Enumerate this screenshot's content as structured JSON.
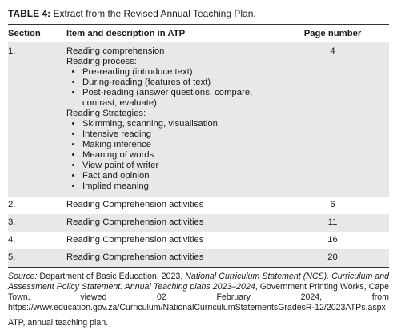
{
  "table": {
    "label": "TABLE 4:",
    "title": "Extract from the Revised Annual Teaching Plan.",
    "headers": [
      "Section",
      "Item and description in ATP",
      "Page number"
    ],
    "rows": [
      {
        "section": "1.",
        "item": {
          "heading": "Reading comprehension",
          "groups": [
            {
              "label": "Reading process:",
              "bullets": [
                "Pre-reading (introduce text)",
                "During-reading (features of text)",
                "Post-reading (answer questions, compare, contrast, evaluate)"
              ]
            },
            {
              "label": "Reading Strategies:",
              "bullets": [
                "Skimming, scanning, visualisation",
                "Intensive reading",
                "Making inference",
                "Meaning of words",
                "View point of writer",
                "Fact and opinion",
                "Implied meaning"
              ]
            }
          ]
        },
        "page": "4"
      },
      {
        "section": "2.",
        "item": "Reading Comprehension activities",
        "page": "6"
      },
      {
        "section": "3.",
        "item": "Reading Comprehension activities",
        "page": "11"
      },
      {
        "section": "4.",
        "item": "Reading Comprehension activities",
        "page": "16"
      },
      {
        "section": "5.",
        "item": "Reading Comprehension activities",
        "page": "20"
      }
    ]
  },
  "source": {
    "label": "Source:",
    "parts": [
      {
        "text": " Department of Basic Education, 2023, ",
        "italic": false
      },
      {
        "text": "National Curriculum Statement (NCS). Curriculum and Assessment Policy Statement. Annual Teaching plans 2023–2024",
        "italic": true
      },
      {
        "text": ", Government Printing Works, Cape Town, viewed 02 February 2024, from https://www.education.gov.za/Curriculum/NationalCurriculumStatementsGradesR-12/2023ATPs.aspx",
        "italic": false
      }
    ]
  },
  "abbreviation": "ATP, annual teaching plan."
}
